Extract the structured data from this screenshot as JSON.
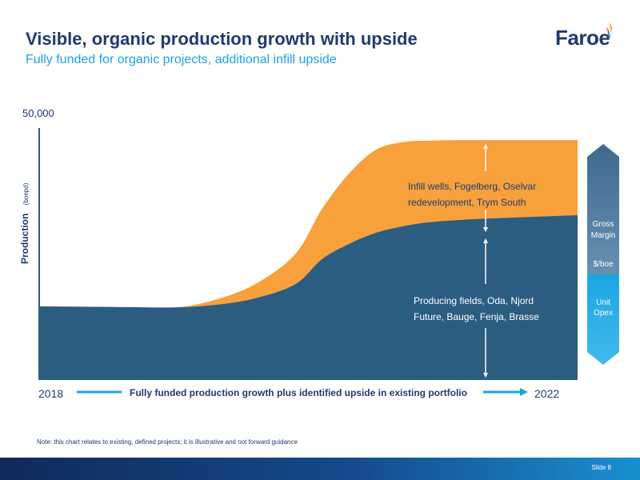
{
  "header": {
    "title": "Visible, organic production growth with upside",
    "subtitle": "Fully funded for organic projects, additional infill upside"
  },
  "logo": {
    "text": "Faroe"
  },
  "chart_data": {
    "type": "area",
    "title": "",
    "ylabel": "Production",
    "yunit": "(boepd)",
    "ymax_label": "50,000",
    "ylim": [
      0,
      50000
    ],
    "xlim_labels": [
      "2018",
      "2022"
    ],
    "xcaption": "Fully funded production growth plus identified upside in existing portfolio",
    "x": [
      2018.0,
      2018.5,
      2019.0,
      2019.3,
      2019.6,
      2019.9,
      2020.1,
      2020.3,
      2020.5,
      2020.7,
      2020.9,
      2021.1,
      2021.3,
      2021.6,
      2021.9,
      2022.0
    ],
    "series": [
      {
        "name": "Producing fields, Oda, Njord Future, Bauge, Fenja, Brasse",
        "values": [
          14600,
          14500,
          14400,
          14900,
          16200,
          19000,
          24000,
          27000,
          29200,
          30500,
          31300,
          31700,
          32000,
          32300,
          32600,
          32700
        ]
      },
      {
        "name": "Infill wells, Fogelberg, Oselvar redevelopment, Trym South",
        "values": [
          0,
          0,
          0,
          1000,
          2800,
          6000,
          10000,
          14000,
          16500,
          16700,
          16200,
          15900,
          15600,
          15300,
          15000,
          14900
        ]
      }
    ],
    "annotations": {
      "upside": "Infill wells, Fogelberg, Oselvar redevelopment, Trym South",
      "producing": "Producing fields, Oda, Njord Future, Bauge, Fenja, Brasse"
    },
    "side_bar": {
      "gross_margin": "Gross Margin",
      "per_boe": "$/boe",
      "unit_opex": "Unit Opex"
    }
  },
  "colors": {
    "producing": "#2b5d80",
    "upside": "#f7a03c",
    "navy": "#1f3a6e",
    "accent": "#1fa2e0"
  },
  "note": "Note: this chart relates to existing, defined projects; it is illustrative and not forward guidance",
  "footer": {
    "slide": "Slide 8"
  }
}
